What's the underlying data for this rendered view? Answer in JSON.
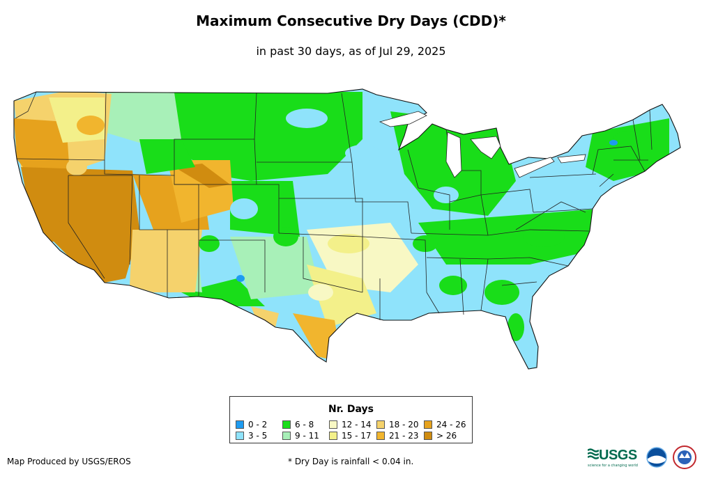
{
  "title": "Maximum Consecutive Dry Days (CDD)*",
  "subtitle": "in past 30 days, as of Jul 29, 2025",
  "legend": {
    "title": "Nr. Days",
    "items": [
      {
        "label": "0 - 2",
        "color": "#1e9bf0"
      },
      {
        "label": "3 - 5",
        "color": "#8fe3fb"
      },
      {
        "label": "6 - 8",
        "color": "#19dd19"
      },
      {
        "label": "9 - 11",
        "color": "#a8f0b8"
      },
      {
        "label": "12 - 14",
        "color": "#f8f8c4"
      },
      {
        "label": "15 - 17",
        "color": "#f3f08a"
      },
      {
        "label": "18 - 20",
        "color": "#f5d26c"
      },
      {
        "label": "21 - 23",
        "color": "#f1b52e"
      },
      {
        "label": "24 - 26",
        "color": "#e6a21d"
      },
      {
        "label": "> 26",
        "color": "#d08c10"
      }
    ]
  },
  "footer": {
    "producer": "Map Produced by USGS/EROS",
    "note": "* Dry Day is rainfall < 0.04 in."
  },
  "logos": {
    "usgs": "USGS",
    "usgs_tagline": "science for a changing world"
  }
}
